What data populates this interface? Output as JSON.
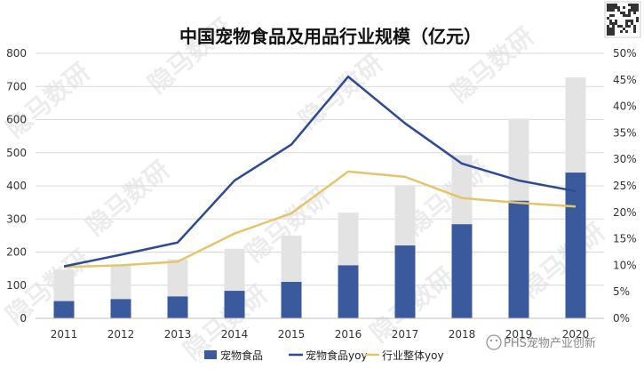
{
  "chart_data": {
    "type": "bar",
    "title": "中国宠物食品及用品行业规模（亿元）",
    "categories": [
      "2011",
      "2012",
      "2013",
      "2014",
      "2015",
      "2016",
      "2017",
      "2018",
      "2019",
      "2020"
    ],
    "bar_total_values": [
      147,
      158,
      178,
      210,
      250,
      319,
      402,
      493,
      603,
      727
    ],
    "series": [
      {
        "name": "宠物食品",
        "type": "bar",
        "axis": "left",
        "values": [
          52,
          58,
          66,
          83,
          110,
          160,
          220,
          284,
          355,
          440
        ]
      },
      {
        "name": "宠物食品yoy",
        "type": "line",
        "axis": "right",
        "values": [
          0.098,
          0.12,
          0.143,
          0.26,
          0.328,
          0.456,
          0.368,
          0.292,
          0.26,
          0.24
        ]
      },
      {
        "name": "行业整体yoy",
        "type": "line",
        "axis": "right",
        "values": [
          0.097,
          0.1,
          0.107,
          0.16,
          0.198,
          0.277,
          0.267,
          0.227,
          0.218,
          0.211
        ]
      }
    ],
    "y_left": {
      "min": 0,
      "max": 800,
      "ticks": [
        "0",
        "100",
        "200",
        "300",
        "400",
        "500",
        "600",
        "700",
        "800"
      ]
    },
    "y_right": {
      "min": 0,
      "max": 0.5,
      "ticks": [
        "0%",
        "5%",
        "10%",
        "15%",
        "20%",
        "25%",
        "30%",
        "35%",
        "40%",
        "45%",
        "50%"
      ]
    },
    "grid": true,
    "legend_position": "bottom",
    "colors": {
      "food_bar": "#3b5a9d",
      "total_bar": "#e3e3e3",
      "food_yoy": "#2e4a96",
      "industry_yoy": "#e5c46b"
    }
  },
  "watermark": "隐马数研",
  "brand": {
    "text": "PHS宠物产业创新"
  }
}
